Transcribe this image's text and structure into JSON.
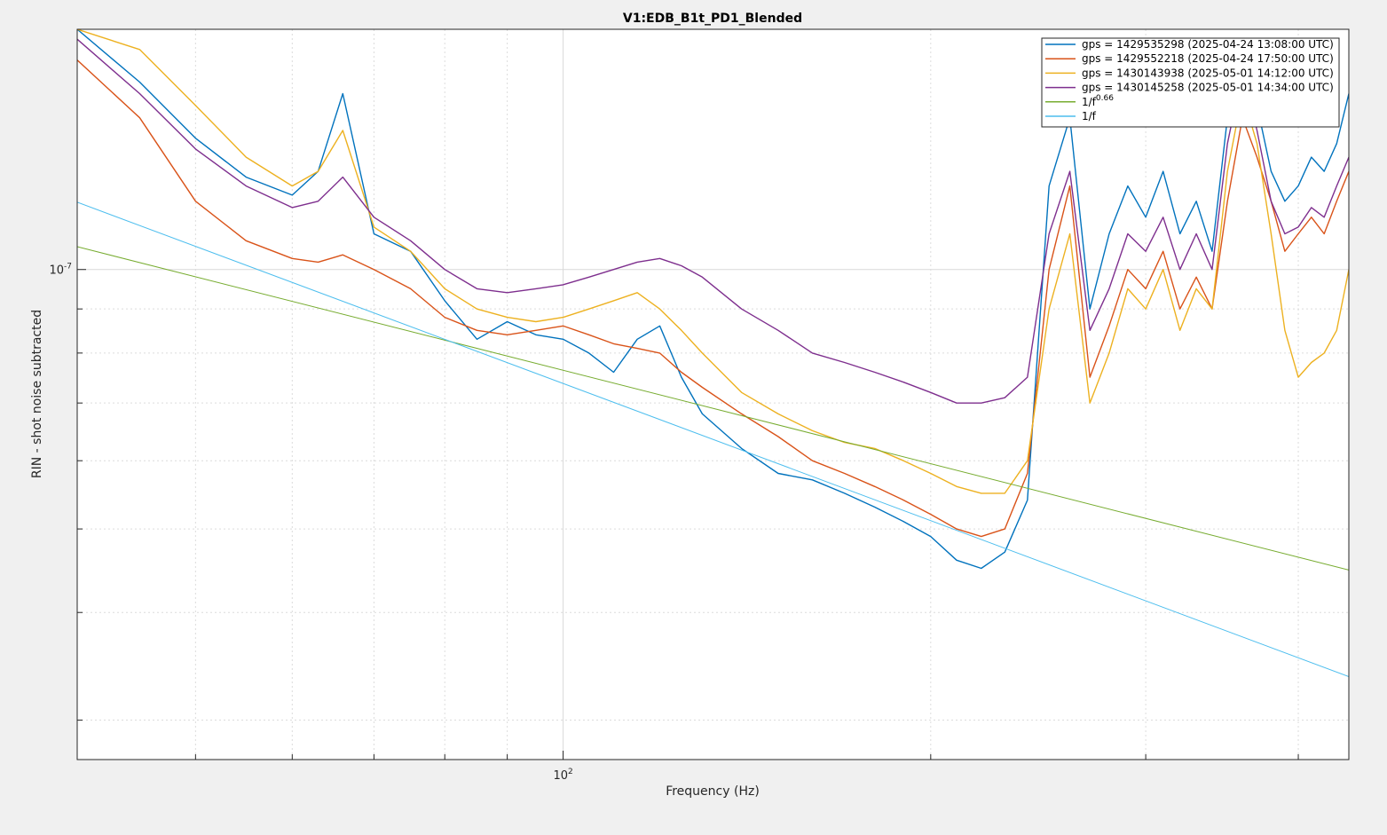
{
  "chart_data": {
    "type": "line",
    "title": "V1:EDB_B1t_PD1_Blended",
    "xlabel": "Frequency (Hz)",
    "ylabel": "RIN - shot noise subtracted",
    "x_scale": "log",
    "y_scale": "log",
    "xlim": [
      40,
      440
    ],
    "ylim": [
      2.7e-08,
      1.9e-07
    ],
    "grid": true,
    "minor_grid": true,
    "legend_position": "top-right",
    "x_ticks": [
      {
        "value": 100,
        "base": "10",
        "exponent": "2"
      }
    ],
    "y_ticks": [
      {
        "value": 1e-07,
        "base": "10",
        "exponent": "-7"
      }
    ],
    "series": [
      {
        "name": "gps = 1429535298 (2025-04-24 13:08:00 UTC)",
        "color": "#0072BD",
        "x": [
          40,
          45,
          50,
          55,
          60,
          63,
          66,
          70,
          75,
          80,
          85,
          90,
          95,
          100,
          105,
          110,
          115,
          120,
          125,
          130,
          140,
          150,
          160,
          170,
          180,
          190,
          200,
          210,
          220,
          230,
          240,
          250,
          260,
          270,
          280,
          290,
          300,
          310,
          320,
          330,
          340,
          350,
          360,
          370,
          380,
          390,
          400,
          410,
          420,
          430,
          440
        ],
        "y": [
          1.9e-07,
          1.65e-07,
          1.42e-07,
          1.28e-07,
          1.22e-07,
          1.3e-07,
          1.6e-07,
          1.1e-07,
          1.05e-07,
          9.2e-08,
          8.3e-08,
          8.7e-08,
          8.4e-08,
          8.3e-08,
          8e-08,
          7.6e-08,
          8.3e-08,
          8.6e-08,
          7.5e-08,
          6.8e-08,
          6.2e-08,
          5.8e-08,
          5.7e-08,
          5.5e-08,
          5.3e-08,
          5.1e-08,
          4.9e-08,
          4.6e-08,
          4.5e-08,
          4.7e-08,
          5.4e-08,
          1.25e-07,
          1.5e-07,
          9e-08,
          1.1e-07,
          1.25e-07,
          1.15e-07,
          1.3e-07,
          1.1e-07,
          1.2e-07,
          1.05e-07,
          1.5e-07,
          1.8e-07,
          1.55e-07,
          1.3e-07,
          1.2e-07,
          1.25e-07,
          1.35e-07,
          1.3e-07,
          1.4e-07,
          1.6e-07
        ]
      },
      {
        "name": "gps = 1429552218 (2025-04-24 17:50:00 UTC)",
        "color": "#D95319",
        "x": [
          40,
          45,
          50,
          55,
          60,
          63,
          66,
          70,
          75,
          80,
          85,
          90,
          95,
          100,
          105,
          110,
          115,
          120,
          125,
          130,
          140,
          150,
          160,
          170,
          180,
          190,
          200,
          210,
          220,
          230,
          240,
          250,
          260,
          270,
          280,
          290,
          300,
          310,
          320,
          330,
          340,
          350,
          360,
          370,
          380,
          390,
          400,
          410,
          420,
          430,
          440
        ],
        "y": [
          1.75e-07,
          1.5e-07,
          1.2e-07,
          1.08e-07,
          1.03e-07,
          1.02e-07,
          1.04e-07,
          1e-07,
          9.5e-08,
          8.8e-08,
          8.5e-08,
          8.4e-08,
          8.5e-08,
          8.6e-08,
          8.4e-08,
          8.2e-08,
          8.1e-08,
          8e-08,
          7.6e-08,
          7.3e-08,
          6.8e-08,
          6.4e-08,
          6e-08,
          5.8e-08,
          5.6e-08,
          5.4e-08,
          5.2e-08,
          5e-08,
          4.9e-08,
          5e-08,
          5.8e-08,
          1e-07,
          1.25e-07,
          7.5e-08,
          8.6e-08,
          1e-07,
          9.5e-08,
          1.05e-07,
          9e-08,
          9.8e-08,
          9e-08,
          1.2e-07,
          1.5e-07,
          1.35e-07,
          1.2e-07,
          1.05e-07,
          1.1e-07,
          1.15e-07,
          1.1e-07,
          1.2e-07,
          1.3e-07
        ]
      },
      {
        "name": "gps = 1430143938 (2025-05-01 14:12:00 UTC)",
        "color": "#EDB120",
        "x": [
          40,
          45,
          50,
          55,
          60,
          63,
          66,
          70,
          75,
          80,
          85,
          90,
          95,
          100,
          105,
          110,
          115,
          120,
          125,
          130,
          140,
          150,
          160,
          170,
          180,
          190,
          200,
          210,
          220,
          230,
          240,
          250,
          260,
          270,
          280,
          290,
          300,
          310,
          320,
          330,
          340,
          350,
          360,
          370,
          380,
          390,
          400,
          410,
          420,
          430,
          440
        ],
        "y": [
          1.9e-07,
          1.8e-07,
          1.55e-07,
          1.35e-07,
          1.25e-07,
          1.3e-07,
          1.45e-07,
          1.12e-07,
          1.05e-07,
          9.5e-08,
          9e-08,
          8.8e-08,
          8.7e-08,
          8.8e-08,
          9e-08,
          9.2e-08,
          9.4e-08,
          9e-08,
          8.5e-08,
          8e-08,
          7.2e-08,
          6.8e-08,
          6.5e-08,
          6.3e-08,
          6.2e-08,
          6e-08,
          5.8e-08,
          5.6e-08,
          5.5e-08,
          5.5e-08,
          6e-08,
          9e-08,
          1.1e-07,
          7e-08,
          8e-08,
          9.5e-08,
          9e-08,
          1e-07,
          8.5e-08,
          9.5e-08,
          9e-08,
          1.3e-07,
          1.6e-07,
          1.4e-07,
          1.1e-07,
          8.5e-08,
          7.5e-08,
          7.8e-08,
          8e-08,
          8.5e-08,
          1e-07
        ]
      },
      {
        "name": "gps = 1430145258 (2025-05-01 14:34:00 UTC)",
        "color": "#7E2F8E",
        "x": [
          40,
          45,
          50,
          55,
          60,
          63,
          66,
          70,
          75,
          80,
          85,
          90,
          95,
          100,
          105,
          110,
          115,
          120,
          125,
          130,
          140,
          150,
          160,
          170,
          180,
          190,
          200,
          210,
          220,
          230,
          240,
          250,
          260,
          270,
          280,
          290,
          300,
          310,
          320,
          330,
          340,
          350,
          360,
          370,
          380,
          390,
          400,
          410,
          420,
          430,
          440
        ],
        "y": [
          1.85e-07,
          1.6e-07,
          1.38e-07,
          1.25e-07,
          1.18e-07,
          1.2e-07,
          1.28e-07,
          1.15e-07,
          1.08e-07,
          1e-07,
          9.5e-08,
          9.4e-08,
          9.5e-08,
          9.6e-08,
          9.8e-08,
          1e-07,
          1.02e-07,
          1.03e-07,
          1.01e-07,
          9.8e-08,
          9e-08,
          8.5e-08,
          8e-08,
          7.8e-08,
          7.6e-08,
          7.4e-08,
          7.2e-08,
          7e-08,
          7e-08,
          7.1e-08,
          7.5e-08,
          1.1e-07,
          1.3e-07,
          8.5e-08,
          9.5e-08,
          1.1e-07,
          1.05e-07,
          1.15e-07,
          1e-07,
          1.1e-07,
          1e-07,
          1.4e-07,
          1.7e-07,
          1.45e-07,
          1.2e-07,
          1.1e-07,
          1.12e-07,
          1.18e-07,
          1.15e-07,
          1.25e-07,
          1.35e-07
        ]
      },
      {
        "name": "1/f",
        "name_superscript": "0.66",
        "color": "#77AC30",
        "x": [
          40,
          440
        ],
        "y": [
          1.063e-07,
          4.48e-08
        ]
      },
      {
        "name": "1/f",
        "color": "#4DBEEE",
        "x": [
          40,
          440
        ],
        "y": [
          1.197e-07,
          3.37e-08
        ]
      }
    ]
  }
}
